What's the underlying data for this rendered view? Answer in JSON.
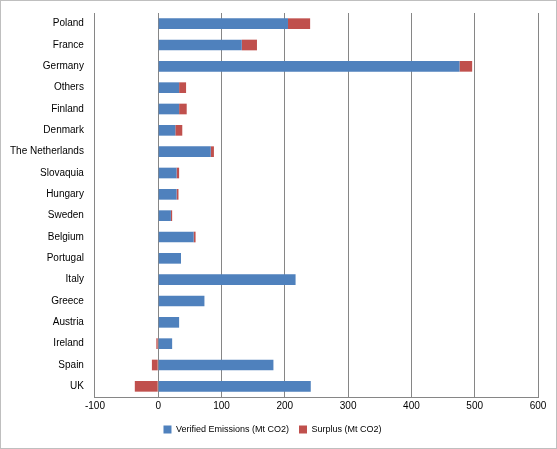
{
  "chart_data": {
    "type": "bar",
    "orientation": "horizontal",
    "stacked": true,
    "grid": true,
    "legend": "bottom",
    "categories": [
      "Poland",
      "France",
      "Germany",
      "Others",
      "Finland",
      "Denmark",
      "The Netherlands",
      "Slovaquia",
      "Hungary",
      "Sweden",
      "Belgium",
      "Portugal",
      "Italy",
      "Greece",
      "Austria",
      "Ireland",
      "Spain",
      "UK"
    ],
    "series": [
      {
        "name": "Verified Emissions (Mt CO2)",
        "color": "#4f81bd",
        "values": [
          205,
          132,
          476,
          33,
          33,
          27,
          83,
          29,
          29,
          20,
          56,
          36,
          217,
          73,
          33,
          22,
          182,
          241
        ]
      },
      {
        "name": "Surplus (Mt CO2)",
        "color": "#c0504d",
        "values": [
          35,
          24,
          20,
          11,
          12,
          11,
          5,
          4,
          3,
          2,
          3,
          0,
          0,
          0,
          0,
          -3,
          -10,
          -37
        ]
      }
    ],
    "xlim": [
      -100,
      600
    ],
    "xticks": [
      -100,
      0,
      100,
      200,
      300,
      400,
      500,
      600
    ]
  }
}
